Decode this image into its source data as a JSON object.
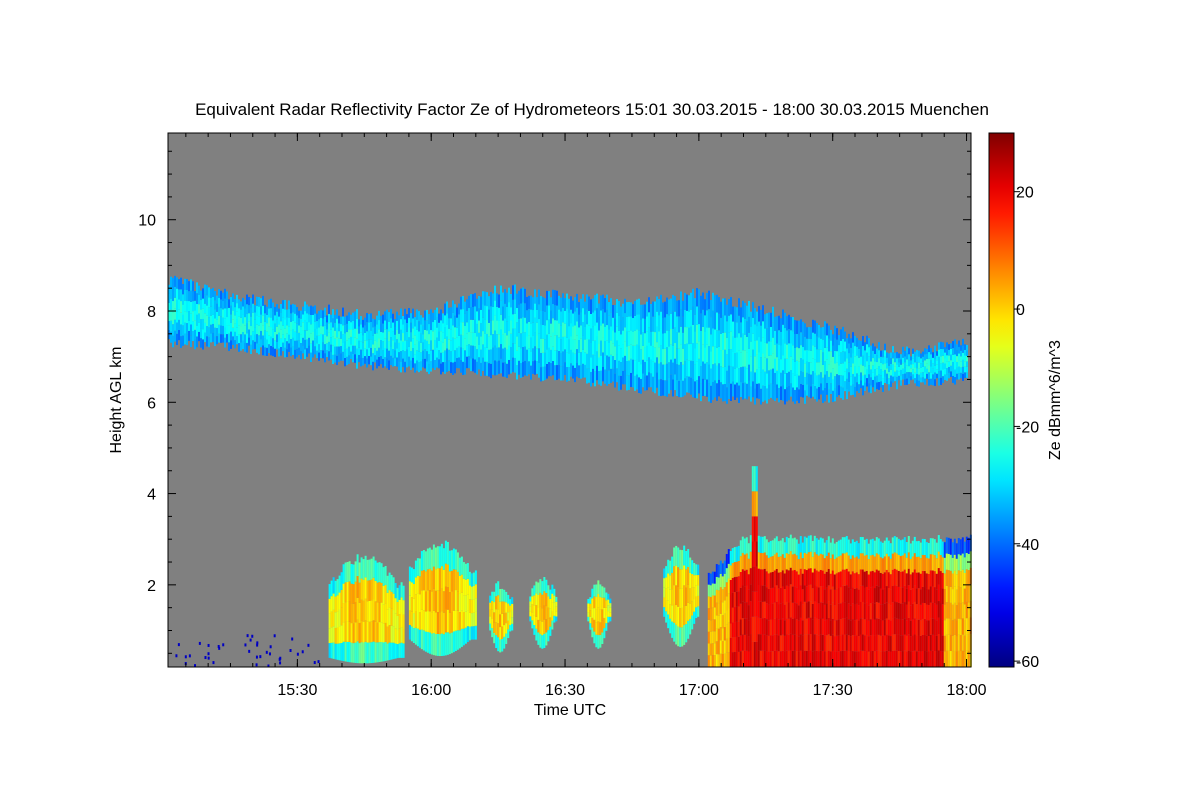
{
  "chart_data": {
    "type": "heatmap",
    "title": "Equivalent Radar Reflectivity Factor Ze of Hydrometeors",
    "period": "15:01 30.03.2015 - 18:00 30.03.2015",
    "location": "Muenchen",
    "xlabel": "Time UTC",
    "ylabel": "Height AGL km",
    "xlim": [
      "15:01",
      "18:01"
    ],
    "ylim": [
      0.2,
      11.9
    ],
    "x_ticks": [
      "15:30",
      "16:00",
      "16:30",
      "17:00",
      "17:30",
      "18:00"
    ],
    "y_ticks": [
      2,
      4,
      6,
      8,
      10
    ],
    "colorbar": {
      "label": "Ze dBmm^6/m^3",
      "range": [
        -61,
        30
      ],
      "ticks": [
        20,
        0,
        -20,
        -40,
        -60
      ],
      "colormap": "jet"
    },
    "background_color": "#808080",
    "features": [
      {
        "name": "upper ice cloud layer",
        "time_range": [
          "15:01",
          "18:00"
        ],
        "top_km": [
          8.7,
          8.3,
          8.1,
          7.9,
          8.0,
          8.5,
          8.3,
          8.2,
          8.4,
          8.0,
          7.6,
          7.1,
          7.3
        ],
        "base_km": [
          7.3,
          7.2,
          7.0,
          6.8,
          6.7,
          6.6,
          6.5,
          6.3,
          6.1,
          6.0,
          6.1,
          6.4,
          6.5
        ],
        "typical_ze_dbz": -30
      },
      {
        "name": "lower precipitation cells",
        "time_range": [
          "15:35",
          "17:00"
        ],
        "top_km": 2.9,
        "typical_ze_dbz": -5
      },
      {
        "name": "intense precipitation",
        "time_range": [
          "17:02",
          "18:00"
        ],
        "top_km": 3.0,
        "peak_top_km": 4.6,
        "typical_ze_dbz": 20
      }
    ]
  }
}
